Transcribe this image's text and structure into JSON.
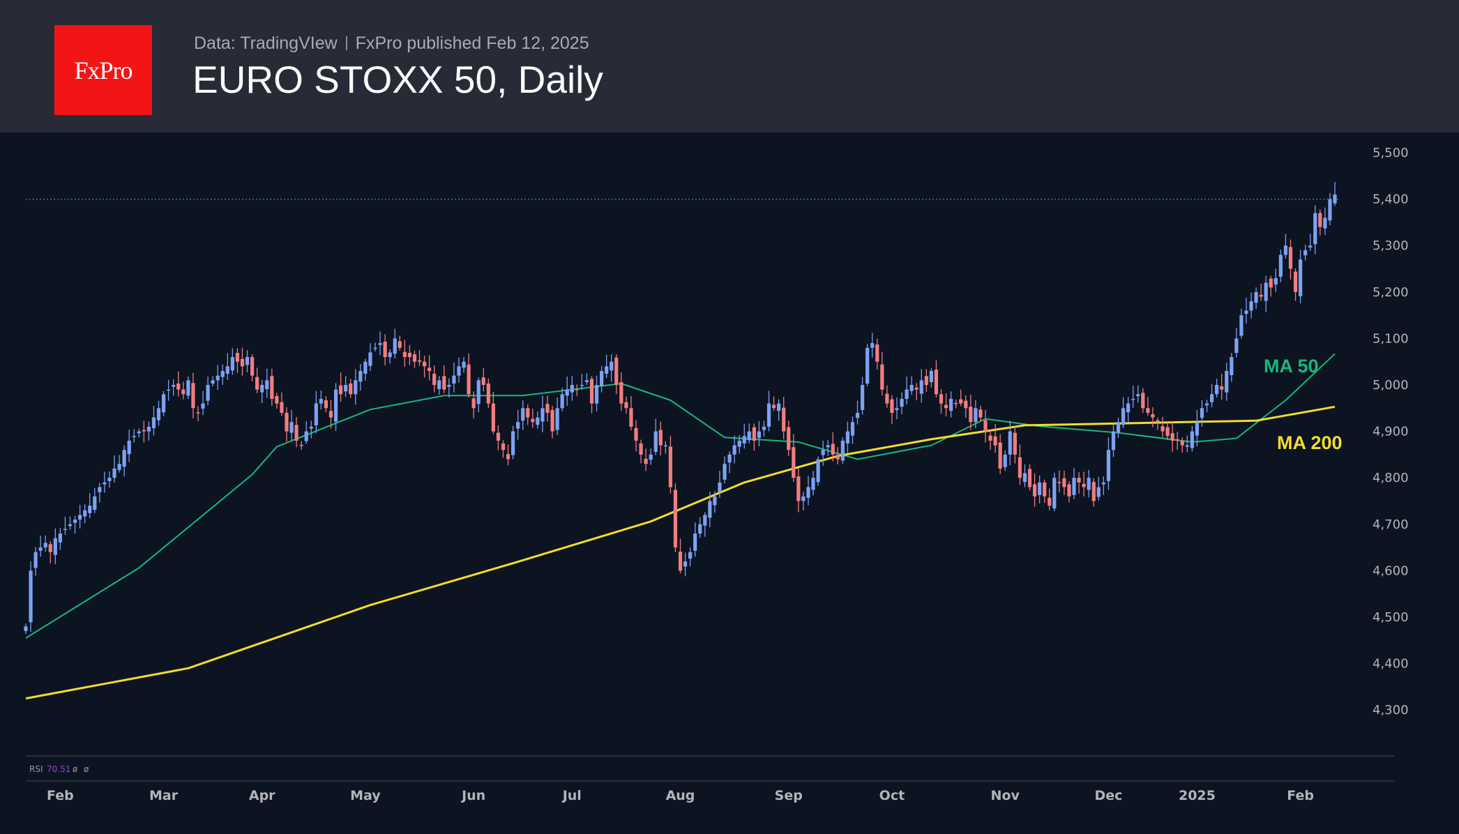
{
  "header": {
    "logo": "FxPro",
    "source": "Data: TradingVIew",
    "published": "FxPro published Feb 12, 2025",
    "title": "EURO STOXX 50, Daily"
  },
  "rsi": {
    "label": "RSI",
    "value": "70.51",
    "extra1": "ø",
    "extra2": "ø"
  },
  "colors": {
    "up": "#7ba2f4",
    "down": "#f27d7f",
    "ma50": "#18b77c",
    "ma200": "#f2dc30",
    "rsi": "#9b3fe0"
  },
  "chart_data": {
    "type": "candlestick",
    "title": "EURO STOXX 50, Daily",
    "ylim": [
      4200,
      5540
    ],
    "yticks": [
      4300,
      4400,
      4500,
      4600,
      4700,
      4800,
      4900,
      5000,
      5100,
      5200,
      5300,
      5400,
      5500
    ],
    "ytick_labels": [
      "4,300",
      "4,400",
      "4,500",
      "4,600",
      "4,700",
      "4,800",
      "4,900",
      "5,000",
      "5,100",
      "5,200",
      "5,300",
      "5,400",
      "5,500"
    ],
    "xticks": [
      {
        "label": "Feb",
        "index": 7
      },
      {
        "label": "Mar",
        "index": 28
      },
      {
        "label": "Apr",
        "index": 48
      },
      {
        "label": "May",
        "index": 69
      },
      {
        "label": "Jun",
        "index": 91
      },
      {
        "label": "Jul",
        "index": 111
      },
      {
        "label": "Aug",
        "index": 133
      },
      {
        "label": "Sep",
        "index": 155
      },
      {
        "label": "Oct",
        "index": 176
      },
      {
        "label": "Nov",
        "index": 199
      },
      {
        "label": "Dec",
        "index": 220
      },
      {
        "label": "2025",
        "index": 238
      },
      {
        "label": "Feb",
        "index": 259
      }
    ],
    "last_price_line": 5400,
    "closes": [
      4480,
      4600,
      4640,
      4650,
      4660,
      4640,
      4670,
      4680,
      4690,
      4700,
      4710,
      4720,
      4730,
      4740,
      4760,
      4780,
      4790,
      4800,
      4820,
      4830,
      4860,
      4880,
      4890,
      4900,
      4900,
      4910,
      4930,
      4950,
      4980,
      4990,
      5000,
      4990,
      4980,
      5010,
      4950,
      4940,
      4960,
      5000,
      5010,
      5020,
      5030,
      5040,
      5060,
      5050,
      5040,
      5060,
      5020,
      4990,
      5000,
      5010,
      4970,
      4960,
      4940,
      4900,
      4920,
      4880,
      4870,
      4900,
      4910,
      4960,
      4970,
      4950,
      4930,
      4990,
      4980,
      5000,
      4980,
      5010,
      5030,
      5050,
      5070,
      5080,
      5090,
      5060,
      5070,
      5100,
      5080,
      5060,
      5060,
      5050,
      5050,
      5040,
      5030,
      5000,
      5010,
      4990,
      5000,
      5020,
      5040,
      5050,
      4980,
      4950,
      5010,
      5000,
      4960,
      4900,
      4880,
      4860,
      4840,
      4900,
      4920,
      4950,
      4930,
      4920,
      4930,
      4950,
      4940,
      4900,
      4950,
      4980,
      4990,
      5000,
      4990,
      5000,
      5010,
      4960,
      5000,
      5030,
      5040,
      5050,
      5000,
      4960,
      4950,
      4910,
      4880,
      4850,
      4830,
      4850,
      4900,
      4870,
      4870,
      4780,
      4650,
      4600,
      4620,
      4640,
      4680,
      4700,
      4720,
      4750,
      4760,
      4790,
      4830,
      4850,
      4870,
      4880,
      4890,
      4900,
      4880,
      4900,
      4910,
      4960,
      4950,
      4960,
      4900,
      4860,
      4800,
      4750,
      4760,
      4780,
      4800,
      4840,
      4860,
      4870,
      4850,
      4840,
      4880,
      4900,
      4920,
      4940,
      5000,
      5080,
      5090,
      5050,
      4990,
      4960,
      4940,
      4950,
      4970,
      4990,
      5000,
      4990,
      5010,
      5000,
      5030,
      4980,
      4960,
      4950,
      4970,
      4960,
      4960,
      4950,
      4920,
      4950,
      4930,
      4900,
      4880,
      4870,
      4820,
      4850,
      4900,
      4850,
      4800,
      4810,
      4780,
      4760,
      4790,
      4760,
      4740,
      4800,
      4790,
      4780,
      4760,
      4800,
      4790,
      4780,
      4800,
      4750,
      4780,
      4790,
      4860,
      4900,
      4920,
      4950,
      4960,
      4970,
      4980,
      4950,
      4940,
      4930,
      4920,
      4900,
      4890,
      4880,
      4880,
      4870,
      4870,
      4900,
      4920,
      4950,
      4960,
      4980,
      5000,
      4990,
      5030,
      5060,
      5100,
      5150,
      5160,
      5180,
      5200,
      5190,
      5220,
      5210,
      5230,
      5280,
      5300,
      5250,
      5200,
      5270,
      5290,
      5300,
      5370,
      5340,
      5360,
      5400,
      5410
    ],
    "series": [
      {
        "name": "MA 50",
        "points": [
          [
            0,
            4455
          ],
          [
            23,
            4606
          ],
          [
            46,
            4807
          ],
          [
            51,
            4867
          ],
          [
            70,
            4947
          ],
          [
            85,
            4977
          ],
          [
            101,
            4977
          ],
          [
            121,
            5003
          ],
          [
            131,
            4967
          ],
          [
            142,
            4887
          ],
          [
            157,
            4877
          ],
          [
            169,
            4840
          ],
          [
            184,
            4870
          ],
          [
            195,
            4927
          ],
          [
            206,
            4911
          ],
          [
            222,
            4897
          ],
          [
            237,
            4877
          ],
          [
            246,
            4885
          ],
          [
            256,
            4967
          ],
          [
            266,
            5067
          ]
        ]
      },
      {
        "name": "MA 200",
        "points": [
          [
            0,
            4325
          ],
          [
            33,
            4390
          ],
          [
            70,
            4526
          ],
          [
            99,
            4616
          ],
          [
            127,
            4706
          ],
          [
            146,
            4790
          ],
          [
            165,
            4847
          ],
          [
            184,
            4883
          ],
          [
            203,
            4913
          ],
          [
            222,
            4917
          ],
          [
            240,
            4921
          ],
          [
            250,
            4923
          ],
          [
            266,
            4953
          ]
        ]
      }
    ],
    "legend": [
      "MA 50",
      "MA 200"
    ]
  }
}
